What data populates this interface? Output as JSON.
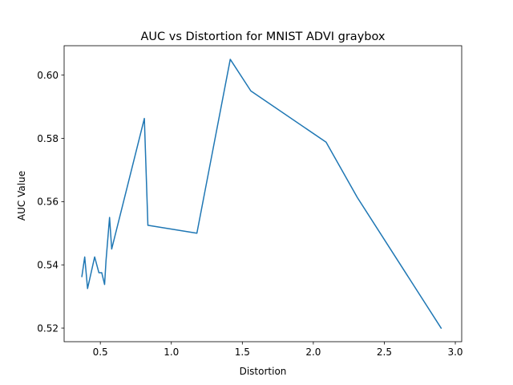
{
  "chart_data": {
    "type": "line",
    "title": "AUC vs Distortion for MNIST ADVI graybox",
    "xlabel": "Distortion",
    "ylabel": "AUC Value",
    "xlim": [
      0.245,
      3.045
    ],
    "ylim": [
      0.5157,
      0.6093
    ],
    "xticks": [
      0.5,
      1.0,
      1.5,
      2.0,
      2.5,
      3.0
    ],
    "xtick_labels": [
      "0.5",
      "1.0",
      "1.5",
      "2.0",
      "2.5",
      "3.0"
    ],
    "yticks": [
      0.52,
      0.54,
      0.56,
      0.58,
      0.6
    ],
    "ytick_labels": [
      "0.52",
      "0.54",
      "0.56",
      "0.58",
      "0.60"
    ],
    "grid": false,
    "series": [
      {
        "color": "#1f77b4",
        "x": [
          0.37,
          0.39,
          0.41,
          0.46,
          0.49,
          0.51,
          0.53,
          0.54,
          0.565,
          0.58,
          0.81,
          0.835,
          1.18,
          1.415,
          1.56,
          2.09,
          2.31,
          2.9
        ],
        "y": [
          0.5363,
          0.5425,
          0.5325,
          0.5425,
          0.5375,
          0.5375,
          0.5338,
          0.5413,
          0.555,
          0.545,
          0.5863,
          0.5525,
          0.55,
          0.605,
          0.595,
          0.5788,
          0.5613,
          0.52
        ]
      }
    ]
  }
}
